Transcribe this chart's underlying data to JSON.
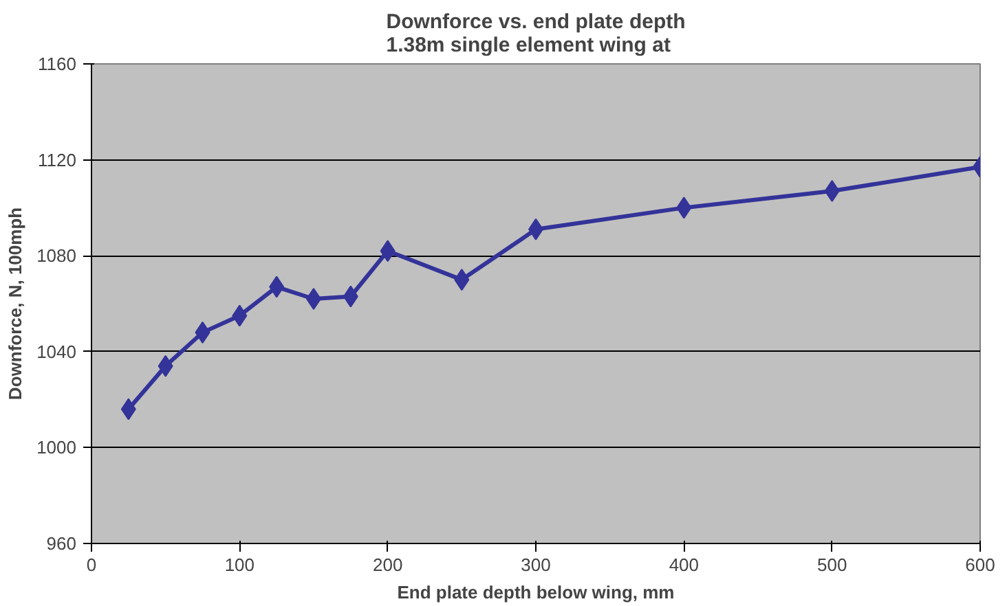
{
  "chart_data": {
    "type": "line",
    "title": "Downforce vs. end plate depth\n1.38m single element wing at",
    "xlabel": "End plate depth below wing, mm",
    "ylabel": "Downforce, N, 100mph",
    "x": [
      25,
      50,
      75,
      100,
      125,
      150,
      175,
      200,
      250,
      300,
      400,
      500,
      600
    ],
    "series": [
      {
        "color": "#333399",
        "values": [
          1016,
          1034,
          1048,
          1055,
          1067,
          1062,
          1063,
          1082,
          1070,
          1091,
          1100,
          1107,
          1117
        ]
      }
    ],
    "xlim": [
      0,
      600
    ],
    "xticks": [
      0,
      100,
      200,
      300,
      400,
      500,
      600
    ],
    "ylim": [
      960,
      1160
    ],
    "yticks": [
      960,
      1000,
      1040,
      1080,
      1120,
      1160
    ],
    "grid": "y",
    "marker": "diamond",
    "line_style": "solid"
  }
}
